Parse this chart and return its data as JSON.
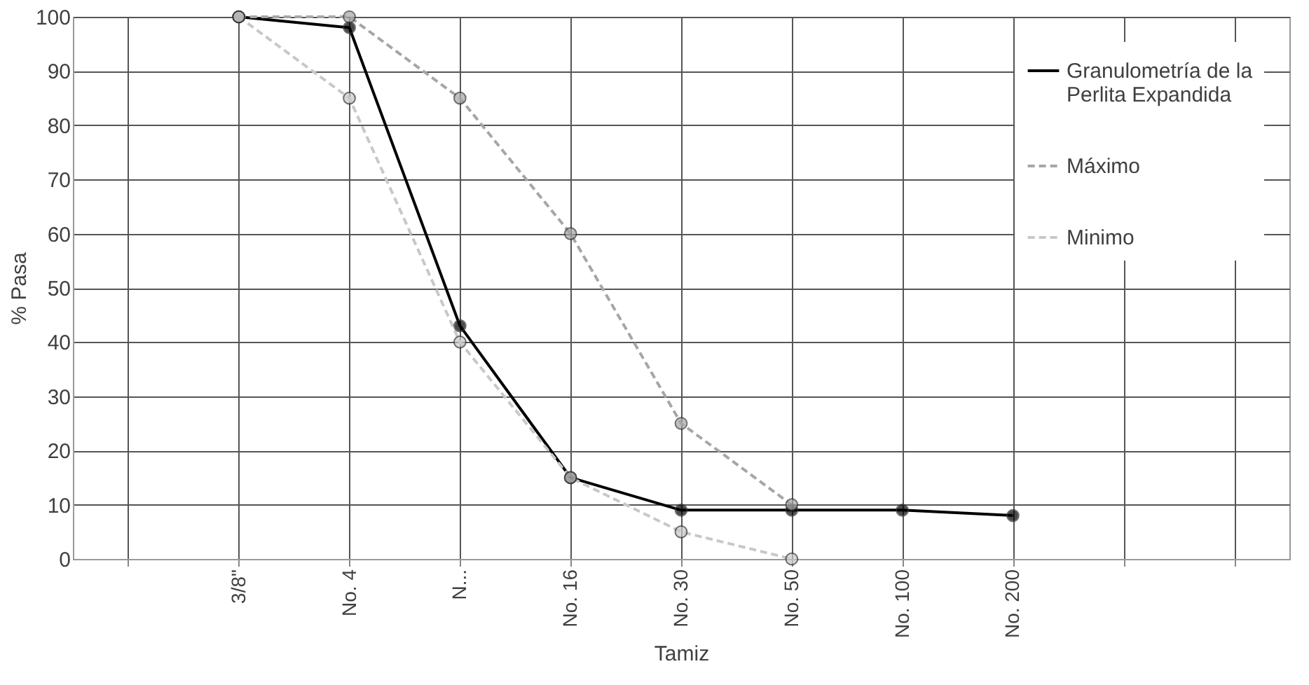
{
  "chart_data": {
    "type": "line",
    "xlabel": "Tamiz",
    "ylabel": "% Pasa",
    "categories": [
      null,
      "3/8\"",
      "No. 4",
      "N...",
      "No. 16",
      "No. 30",
      "No. 50",
      "No. 100",
      "No. 200",
      null,
      null
    ],
    "series": [
      {
        "name": "Granulometría de la Perlita Expandida",
        "color": "#000000",
        "line_style": "solid",
        "values": [
          null,
          100,
          98,
          43,
          15,
          9,
          9,
          9,
          8,
          null,
          null
        ]
      },
      {
        "name": "Máximo",
        "color": "#a6a6a6",
        "line_style": "dashed",
        "values": [
          null,
          100,
          100,
          85,
          60,
          25,
          10,
          null,
          null,
          null,
          null
        ]
      },
      {
        "name": "Minimo",
        "color": "#c8c8c8",
        "line_style": "dashed",
        "values": [
          null,
          100,
          85,
          40,
          15,
          5,
          0,
          null,
          null,
          null,
          null
        ]
      }
    ],
    "ylim": [
      0,
      100
    ],
    "yticks": [
      0,
      10,
      20,
      30,
      40,
      50,
      60,
      70,
      80,
      90,
      100
    ],
    "grid": true,
    "legend": "top right",
    "marker": "circle"
  }
}
